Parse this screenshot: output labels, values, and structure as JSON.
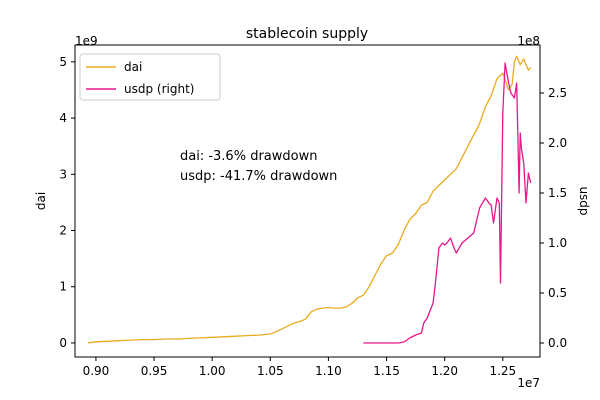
{
  "chart_data": {
    "type": "line",
    "title": "stablecoin supply",
    "xlabel": "",
    "x_offset_label": "1e7",
    "xlim": [
      8.82,
      12.82
    ],
    "x_ticks": [
      0.9,
      0.95,
      1.0,
      1.05,
      1.1,
      1.15,
      1.2,
      1.25
    ],
    "x_tick_labels": [
      "0.90",
      "0.95",
      "1.00",
      "1.05",
      "1.10",
      "1.15",
      "1.20",
      "1.25"
    ],
    "left_axis": {
      "label": "dai",
      "offset_label": "1e9",
      "ylim": [
        -0.25,
        5.3
      ],
      "ticks": [
        0,
        1,
        2,
        3,
        4,
        5
      ],
      "tick_labels": [
        "0",
        "1",
        "2",
        "3",
        "4",
        "5"
      ]
    },
    "right_axis": {
      "label": "usdp",
      "offset_label": "1e8",
      "ylim": [
        -0.14,
        2.98
      ],
      "ticks": [
        0.0,
        0.5,
        1.0,
        1.5,
        2.0,
        2.5
      ],
      "tick_labels": [
        "0.0",
        "0.5",
        "1.0",
        "1.5",
        "2.0",
        "2.5"
      ]
    },
    "legend_position": "top-left",
    "grid": false,
    "series": [
      {
        "name": "dai",
        "axis": "left",
        "color": "#e8ab1f",
        "x": [
          8.93,
          9.0,
          9.1,
          9.2,
          9.3,
          9.4,
          9.5,
          9.6,
          9.7,
          9.8,
          9.9,
          10.0,
          10.1,
          10.2,
          10.3,
          10.4,
          10.5,
          10.55,
          10.6,
          10.65,
          10.7,
          10.75,
          10.8,
          10.85,
          10.9,
          10.95,
          11.0,
          11.05,
          11.1,
          11.15,
          11.2,
          11.25,
          11.3,
          11.35,
          11.4,
          11.45,
          11.5,
          11.55,
          11.6,
          11.65,
          11.7,
          11.75,
          11.8,
          11.85,
          11.9,
          11.95,
          12.0,
          12.05,
          12.1,
          12.15,
          12.2,
          12.25,
          12.3,
          12.35,
          12.4,
          12.45,
          12.5,
          12.55,
          12.58,
          12.6,
          12.62,
          12.65,
          12.68,
          12.7,
          12.72,
          12.74
        ],
        "values": [
          0.0,
          0.02,
          0.03,
          0.04,
          0.05,
          0.06,
          0.06,
          0.07,
          0.07,
          0.08,
          0.09,
          0.1,
          0.11,
          0.12,
          0.13,
          0.14,
          0.16,
          0.2,
          0.25,
          0.3,
          0.35,
          0.38,
          0.42,
          0.55,
          0.6,
          0.62,
          0.63,
          0.62,
          0.62,
          0.64,
          0.7,
          0.8,
          0.85,
          1.0,
          1.2,
          1.4,
          1.55,
          1.6,
          1.75,
          2.0,
          2.2,
          2.3,
          2.45,
          2.5,
          2.7,
          2.8,
          2.9,
          3.0,
          3.1,
          3.3,
          3.5,
          3.7,
          3.9,
          4.2,
          4.4,
          4.7,
          4.8,
          4.5,
          4.6,
          5.0,
          5.1,
          4.95,
          5.05,
          4.95,
          4.85,
          4.9
        ]
      },
      {
        "name": "usdp (right)",
        "axis": "right",
        "color": "#e8178a",
        "x": [
          11.3,
          11.4,
          11.5,
          11.6,
          11.65,
          11.7,
          11.75,
          11.8,
          11.82,
          11.85,
          11.9,
          11.92,
          11.95,
          11.98,
          12.0,
          12.02,
          12.05,
          12.08,
          12.1,
          12.15,
          12.2,
          12.25,
          12.3,
          12.35,
          12.38,
          12.4,
          12.42,
          12.45,
          12.47,
          12.48,
          12.5,
          12.52,
          12.55,
          12.57,
          12.6,
          12.62,
          12.64,
          12.65,
          12.66,
          12.68,
          12.7,
          12.72,
          12.74
        ],
        "values": [
          0.0,
          0.0,
          0.0,
          0.0,
          0.01,
          0.05,
          0.08,
          0.1,
          0.2,
          0.25,
          0.4,
          0.6,
          0.95,
          1.0,
          0.98,
          1.0,
          1.05,
          0.95,
          0.9,
          1.0,
          1.05,
          1.1,
          1.35,
          1.45,
          1.4,
          1.38,
          1.2,
          1.45,
          1.4,
          0.6,
          2.3,
          2.8,
          2.6,
          2.5,
          2.45,
          2.6,
          1.5,
          2.1,
          1.95,
          1.8,
          1.4,
          1.7,
          1.6
        ]
      }
    ],
    "annotations": [
      {
        "text": "dai: -3.6% drawdown",
        "color": "#e8ab1f"
      },
      {
        "text": "usdp: -41.7% drawdown",
        "color": "#e8178a"
      }
    ]
  }
}
